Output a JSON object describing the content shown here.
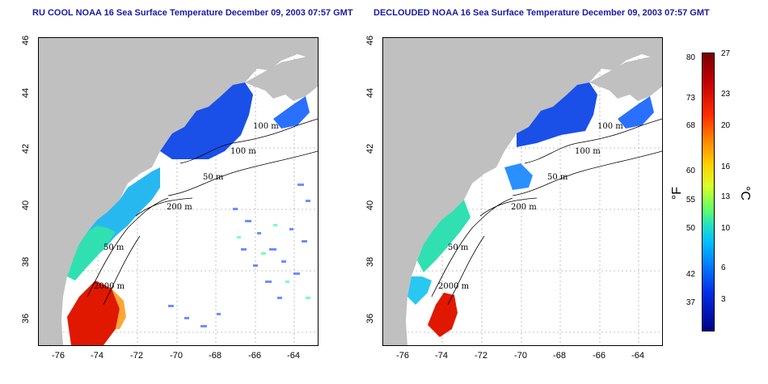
{
  "left_panel": {
    "title": "RU COOL NOAA 16 Sea Surface Temperature December 09, 2003 07:57 GMT",
    "contour_labels": [
      "100 m",
      "100 m",
      "50 m",
      "200 m",
      "50 m",
      "2000 m"
    ]
  },
  "right_panel": {
    "title": "DECLOUDED NOAA 16 Sea Surface Temperature December 09, 2003 07:57 GMT",
    "contour_labels": [
      "100 m",
      "100 m",
      "50 m",
      "200 m",
      "50 m",
      "2000 m"
    ]
  },
  "axes": {
    "y_ticks": [
      "46",
      "44",
      "42",
      "40",
      "38",
      "36"
    ],
    "x_ticks": [
      "-76",
      "-74",
      "-72",
      "-70",
      "-68",
      "-66",
      "-64"
    ]
  },
  "colorbar": {
    "fahrenheit_unit": "°F",
    "celsius_unit": "°C",
    "fahrenheit_ticks": [
      "80",
      "73",
      "68",
      "60",
      "55",
      "50",
      "42",
      "37"
    ],
    "celsius_ticks": [
      "27",
      "23",
      "20",
      "16",
      "13",
      "10",
      "6",
      "3"
    ]
  },
  "colors": {
    "title": "#1a1aa0",
    "land": "#c0c0c0",
    "cold": "#1440e0",
    "warm": "#d01000"
  }
}
